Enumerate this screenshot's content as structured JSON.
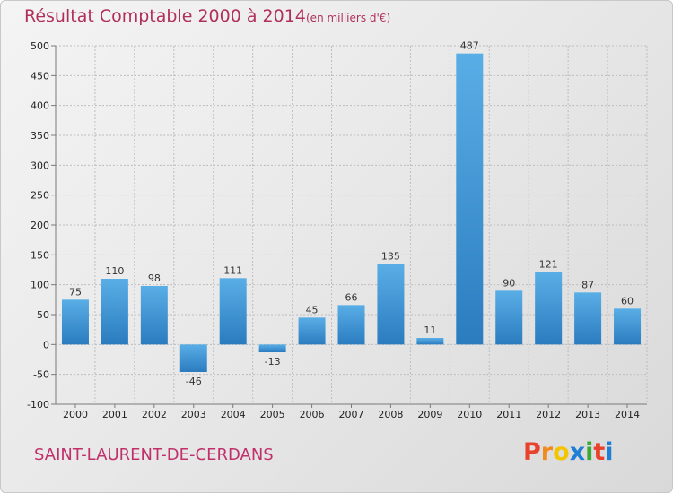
{
  "header": {
    "title": "Résultat Comptable 2000 à 2014",
    "unit": "(en milliers d'€)"
  },
  "footer": {
    "commune": "SAINT-LAURENT-DE-CERDANS",
    "logo_letters": [
      "P",
      "r",
      "o",
      "x",
      "i",
      "t",
      "i"
    ],
    "logo_colors": [
      "#e8412c",
      "#f08a1c",
      "#f2c500",
      "#1f7fd6",
      "#3aa935",
      "#e8412c",
      "#1f7fd6"
    ]
  },
  "chart_data": {
    "type": "bar",
    "title": "Résultat Comptable 2000 à 2014",
    "subtitle": "(en milliers d'€)",
    "categories": [
      "2000",
      "2001",
      "2002",
      "2003",
      "2004",
      "2005",
      "2006",
      "2007",
      "2008",
      "2009",
      "2010",
      "2011",
      "2012",
      "2013",
      "2014"
    ],
    "values": [
      75,
      110,
      98,
      -46,
      111,
      -13,
      45,
      66,
      135,
      11,
      487,
      90,
      121,
      87,
      60
    ],
    "value_labels": [
      "75",
      "110",
      "98",
      "-46",
      "111",
      "-13",
      "45",
      "66",
      "135",
      "11",
      "487",
      "90",
      "121",
      "87",
      "60"
    ],
    "y_ticks": [
      500,
      450,
      400,
      350,
      300,
      250,
      200,
      150,
      100,
      50,
      0,
      -50,
      -100
    ],
    "y_tick_labels": [
      "500",
      "450",
      "400",
      "350",
      "300",
      "250",
      "200",
      "150",
      "100",
      "50",
      "0",
      "-50",
      "-100"
    ],
    "ylim": [
      -100,
      500
    ],
    "xlabel": "",
    "ylabel": "",
    "grid": true,
    "colors": {
      "bar_light": "#5aaee6",
      "bar_dark": "#2a7cbf",
      "grid": "#bdbdbd",
      "axis": "#7a7a7a"
    }
  }
}
